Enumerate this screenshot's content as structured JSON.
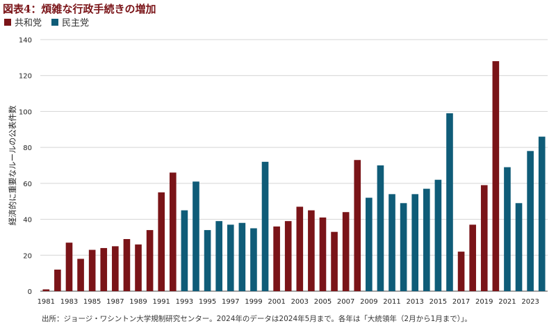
{
  "chart_data": {
    "type": "bar",
    "title": "図表4：煩雑な行政手続きの増加",
    "ylabel": "経済的に重要なルールの公表件数",
    "xlabel": "",
    "ylim": [
      0,
      140
    ],
    "yticks": [
      0,
      20,
      40,
      60,
      80,
      100,
      120,
      140
    ],
    "grid": true,
    "legend_position": "top-left",
    "legend": [
      {
        "name": "共和党",
        "color": "#7a1418"
      },
      {
        "name": "民主党",
        "color": "#0f5c78"
      }
    ],
    "x_tick_labels": [
      "1981",
      "1983",
      "1985",
      "1987",
      "1989",
      "1991",
      "1993",
      "1995",
      "1997",
      "1999",
      "2001",
      "2003",
      "2005",
      "2007",
      "2009",
      "2011",
      "2013",
      "2015",
      "2017",
      "2019",
      "2021",
      "2023"
    ],
    "categories": [
      1981,
      1982,
      1983,
      1984,
      1985,
      1986,
      1987,
      1988,
      1989,
      1990,
      1991,
      1992,
      1993,
      1994,
      1995,
      1996,
      1997,
      1998,
      1999,
      2000,
      2001,
      2002,
      2003,
      2004,
      2005,
      2006,
      2007,
      2008,
      2009,
      2010,
      2011,
      2012,
      2013,
      2014,
      2015,
      2016,
      2017,
      2018,
      2019,
      2020,
      2021,
      2022,
      2023,
      2024
    ],
    "values": [
      1,
      12,
      27,
      18,
      23,
      24,
      25,
      29,
      26,
      34,
      55,
      66,
      45,
      61,
      34,
      39,
      37,
      38,
      35,
      72,
      36,
      39,
      47,
      45,
      41,
      33,
      44,
      73,
      52,
      70,
      54,
      49,
      54,
      57,
      62,
      99,
      22,
      37,
      59,
      128,
      69,
      49,
      78,
      86
    ],
    "party": [
      "R",
      "R",
      "R",
      "R",
      "R",
      "R",
      "R",
      "R",
      "R",
      "R",
      "R",
      "R",
      "D",
      "D",
      "D",
      "D",
      "D",
      "D",
      "D",
      "D",
      "R",
      "R",
      "R",
      "R",
      "R",
      "R",
      "R",
      "R",
      "D",
      "D",
      "D",
      "D",
      "D",
      "D",
      "D",
      "D",
      "R",
      "R",
      "R",
      "R",
      "D",
      "D",
      "D",
      "D"
    ]
  },
  "source_note": "出所：ジョージ・ワシントン大学規制研究センター。2024年のデータは2024年5月まで。各年は「大統領年（2月から1月まで）」。"
}
